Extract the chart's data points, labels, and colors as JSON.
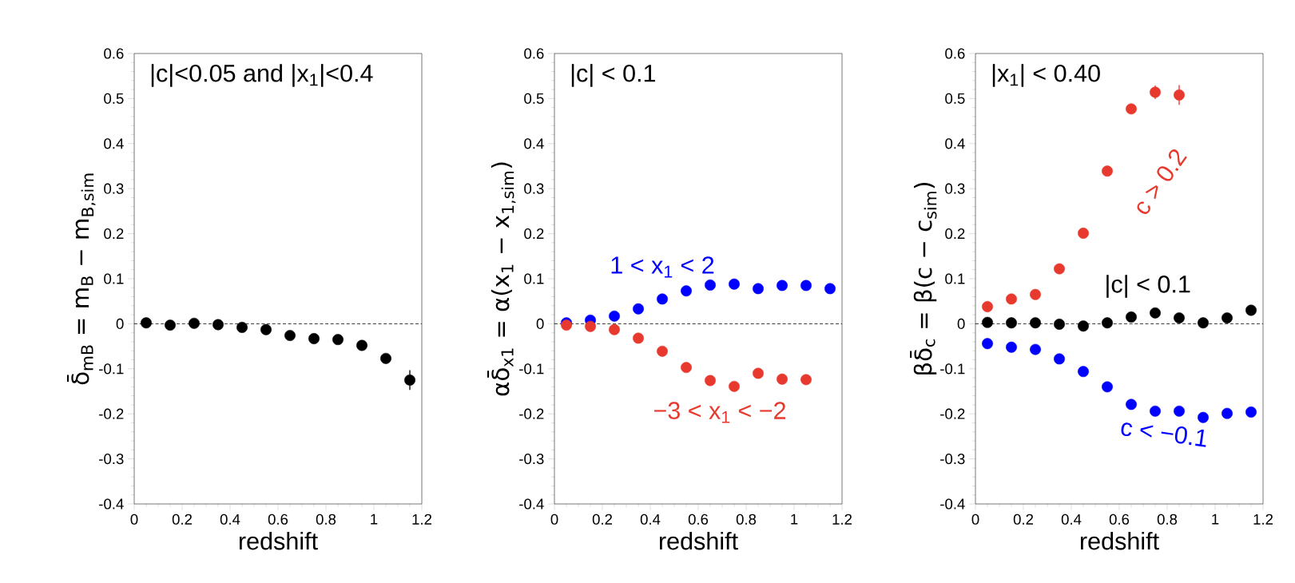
{
  "chart_data": [
    {
      "type": "scatter",
      "title": "|c|<0.05 and |x$_{1}$|<0.4",
      "xlabel": "redshift",
      "ylabel": "δ̄$_{mB}$ = m$_{B}$ − m$_{B,sim}$",
      "xlim": [
        0,
        1.2
      ],
      "ylim": [
        -0.4,
        0.6
      ],
      "xticks": [
        0,
        0.2,
        0.4,
        0.6,
        0.8,
        1,
        1.2
      ],
      "yticks": [
        -0.4,
        -0.3,
        -0.2,
        -0.1,
        0,
        0.1,
        0.2,
        0.3,
        0.4,
        0.5,
        0.6
      ],
      "marker": "circle",
      "ref_lines": [
        {
          "axis": "y",
          "value": 0,
          "line_style": "dashed"
        }
      ],
      "series": [
        {
          "color": "#000000",
          "x": [
            0.05,
            0.15,
            0.25,
            0.35,
            0.45,
            0.55,
            0.65,
            0.75,
            0.85,
            0.95,
            1.05,
            1.15
          ],
          "values": [
            0.002,
            -0.003,
            0.001,
            -0.002,
            -0.008,
            -0.013,
            -0.026,
            -0.033,
            -0.035,
            -0.048,
            -0.077,
            -0.125
          ],
          "errors": [
            null,
            null,
            null,
            null,
            null,
            null,
            null,
            null,
            null,
            null,
            null,
            0.022
          ]
        }
      ]
    },
    {
      "type": "scatter",
      "title": "|c| < 0.1",
      "xlabel": "redshift",
      "ylabel": "αδ̄$_{x1}$ = α(x$_{1}$ − x$_{1,sim}$)",
      "xlim": [
        0,
        1.2
      ],
      "ylim": [
        -0.4,
        0.6
      ],
      "xticks": [
        0,
        0.2,
        0.4,
        0.6,
        0.8,
        1,
        1.2
      ],
      "yticks": [
        -0.4,
        -0.3,
        -0.2,
        -0.1,
        0,
        0.1,
        0.2,
        0.3,
        0.4,
        0.5,
        0.6
      ],
      "marker": "circle",
      "ref_lines": [
        {
          "axis": "y",
          "value": 0,
          "line_style": "dashed"
        }
      ],
      "series": [
        {
          "name": "1 < x$_{1}$ < 2",
          "color": "#0000ff",
          "x": [
            0.05,
            0.15,
            0.25,
            0.35,
            0.45,
            0.55,
            0.65,
            0.75,
            0.85,
            0.95,
            1.05,
            1.15
          ],
          "values": [
            0.002,
            0.008,
            0.017,
            0.033,
            0.055,
            0.073,
            0.086,
            0.088,
            0.078,
            0.085,
            0.085,
            0.078
          ]
        },
        {
          "name": "−3 < x$_{1}$ < −2",
          "color": "#e8392e",
          "x": [
            0.05,
            0.15,
            0.25,
            0.35,
            0.45,
            0.55,
            0.65,
            0.75,
            0.85,
            0.95,
            1.05
          ],
          "values": [
            -0.003,
            -0.006,
            -0.013,
            -0.032,
            -0.061,
            -0.097,
            -0.126,
            -0.139,
            -0.11,
            -0.123,
            -0.124
          ]
        }
      ]
    },
    {
      "type": "scatter",
      "title": "|x$_{1}$| < 0.40",
      "xlabel": "redshift",
      "ylabel": "βδ̄$_{c}$ = β(c − c$_{sim}$)",
      "xlim": [
        0,
        1.2
      ],
      "ylim": [
        -0.4,
        0.6
      ],
      "xticks": [
        0,
        0.2,
        0.4,
        0.6,
        0.8,
        1,
        1.2
      ],
      "yticks": [
        -0.4,
        -0.3,
        -0.2,
        -0.1,
        0,
        0.1,
        0.2,
        0.3,
        0.4,
        0.5,
        0.6
      ],
      "marker": "circle",
      "ref_lines": [
        {
          "axis": "y",
          "value": 0,
          "line_style": "dashed"
        }
      ],
      "series": [
        {
          "name": "c > 0.2",
          "color": "#e8392e",
          "x": [
            0.05,
            0.15,
            0.25,
            0.35,
            0.45,
            0.55,
            0.65,
            0.75,
            0.85
          ],
          "values": [
            0.038,
            0.055,
            0.065,
            0.122,
            0.201,
            0.339,
            0.477,
            0.514,
            0.508
          ],
          "errors": [
            null,
            null,
            null,
            null,
            null,
            null,
            null,
            0.015,
            0.022
          ]
        },
        {
          "name": "|c| < 0.1",
          "color": "#000000",
          "x": [
            0.05,
            0.15,
            0.25,
            0.35,
            0.45,
            0.55,
            0.65,
            0.75,
            0.85,
            0.95,
            1.05,
            1.15
          ],
          "values": [
            0.003,
            0.002,
            0.002,
            -0.001,
            -0.005,
            0.002,
            0.015,
            0.024,
            0.013,
            0.002,
            0.013,
            0.03
          ]
        },
        {
          "name": "c < −0.1",
          "color": "#0000ff",
          "x": [
            0.05,
            0.15,
            0.25,
            0.35,
            0.45,
            0.55,
            0.65,
            0.75,
            0.85,
            0.95,
            1.05,
            1.15
          ],
          "values": [
            -0.044,
            -0.052,
            -0.057,
            -0.078,
            -0.106,
            -0.14,
            -0.179,
            -0.194,
            -0.194,
            -0.208,
            -0.199,
            -0.196
          ]
        }
      ]
    }
  ]
}
